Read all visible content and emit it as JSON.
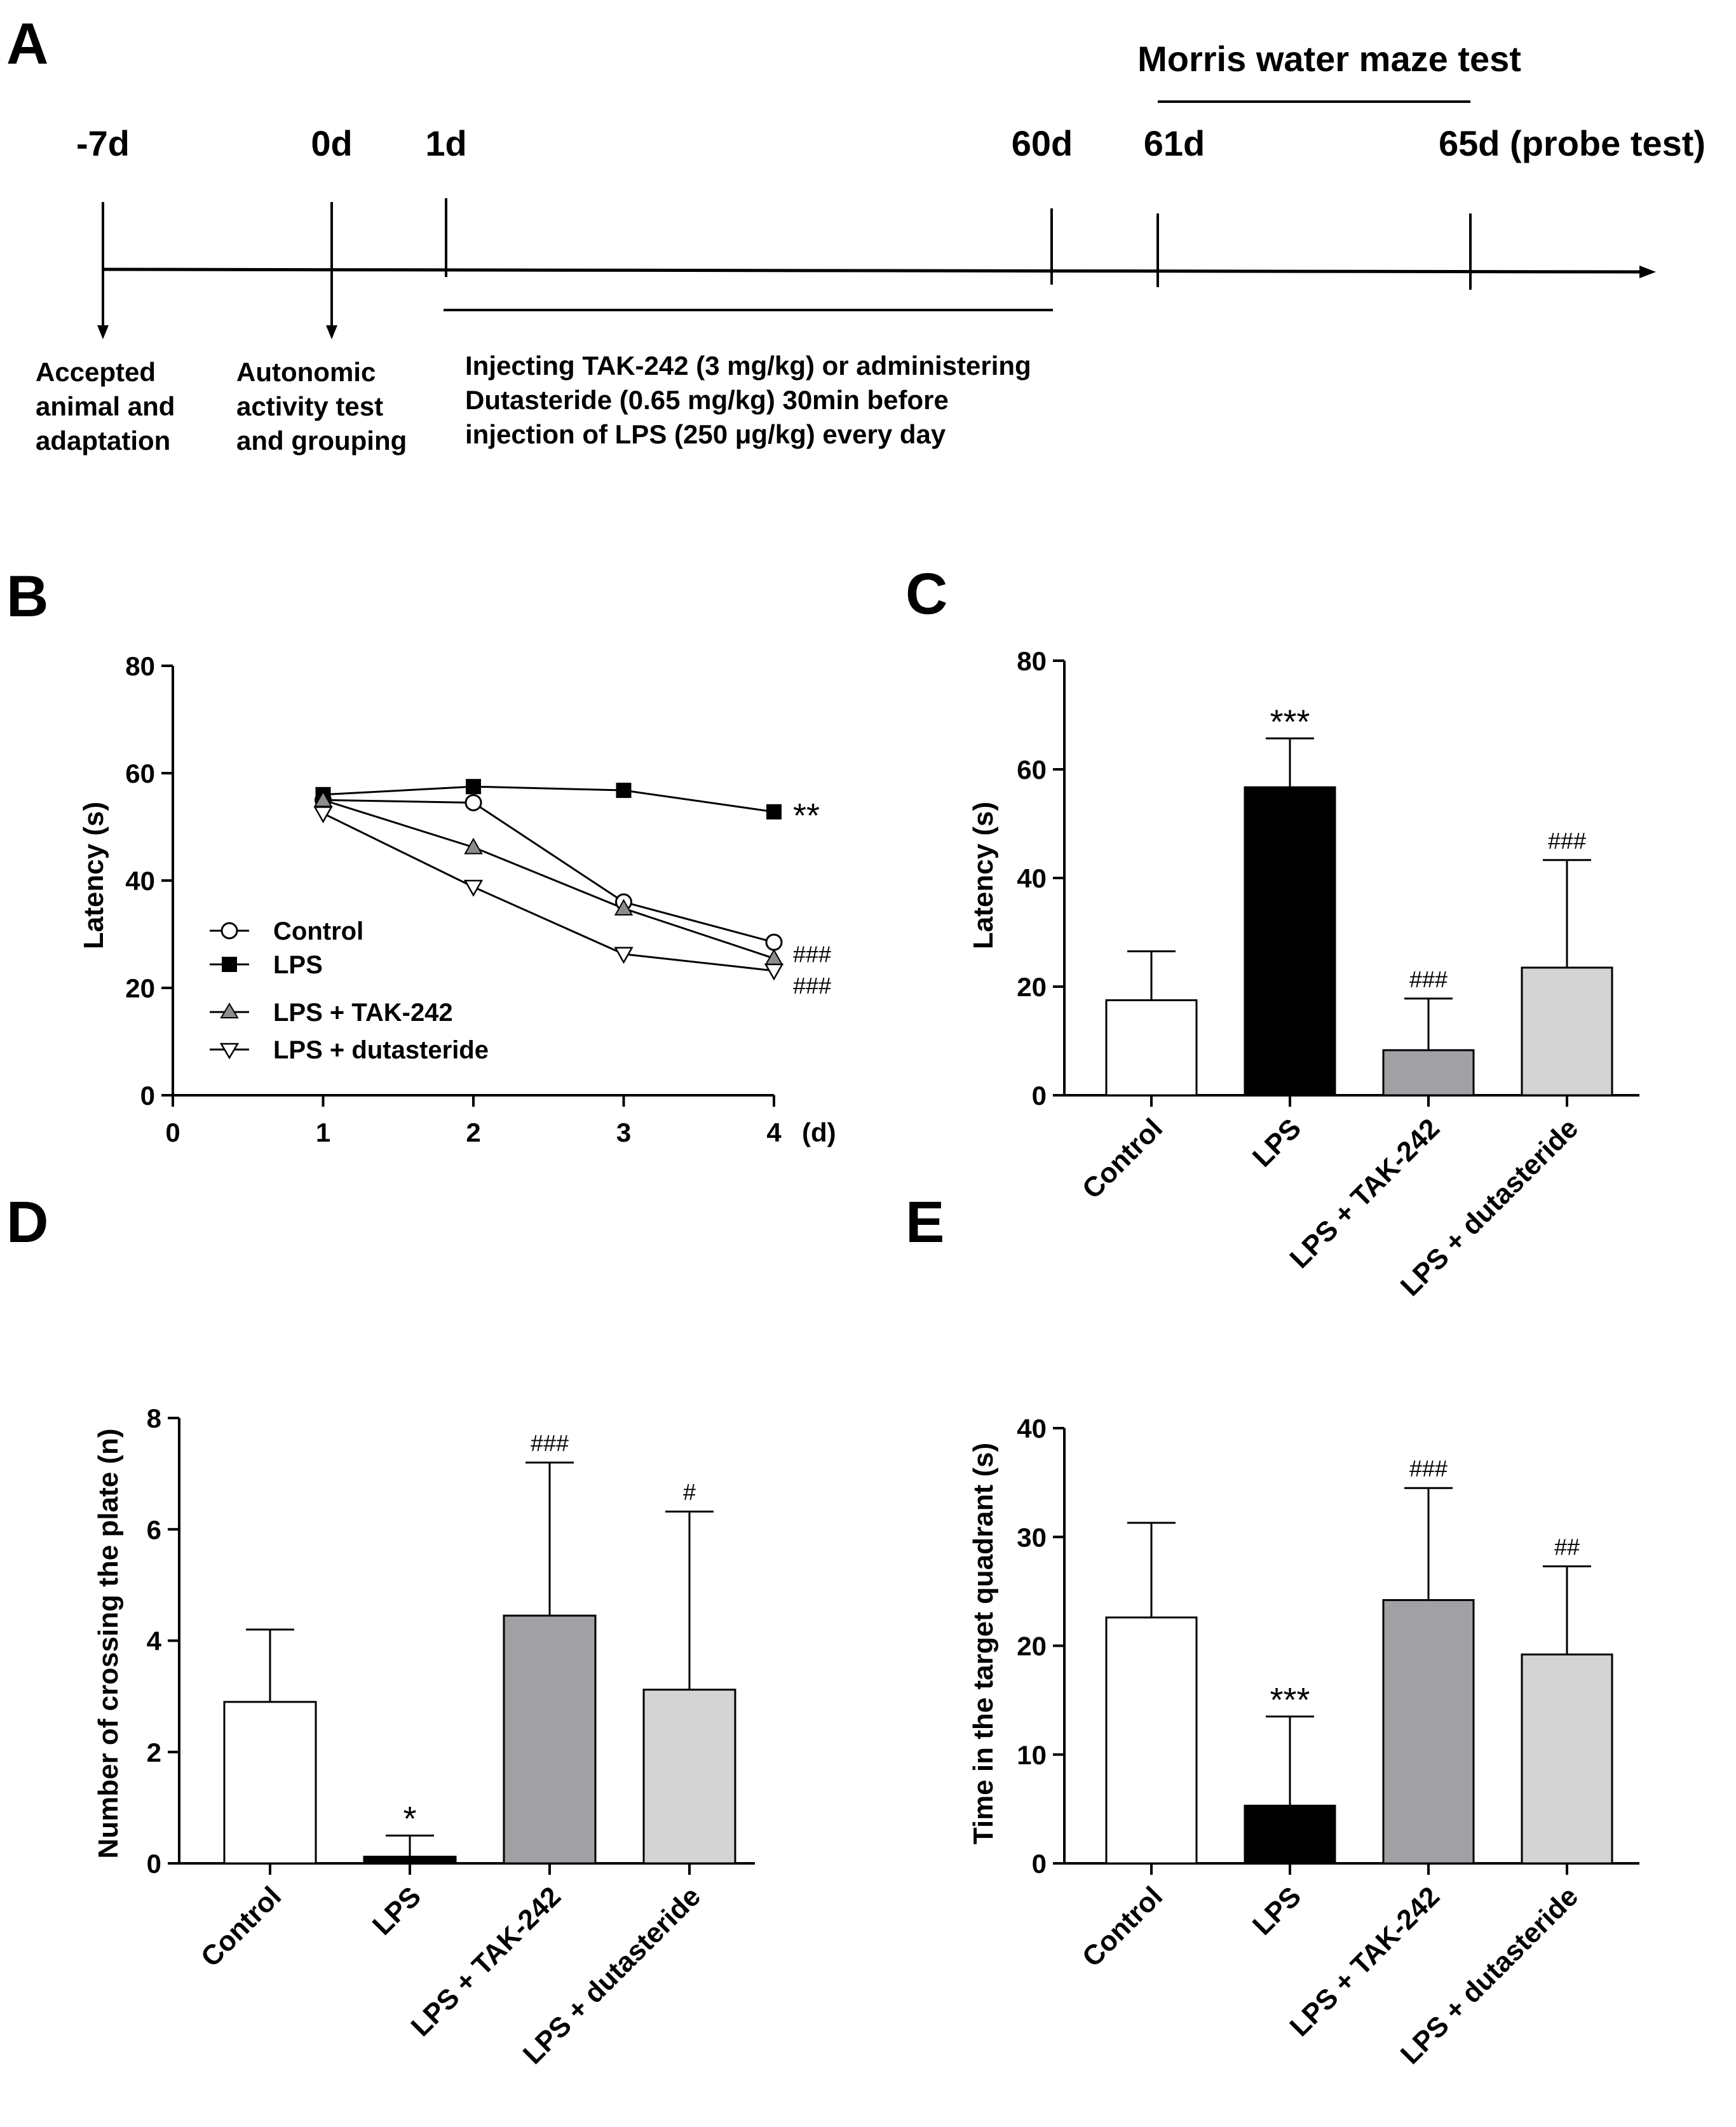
{
  "panel_labels": [
    "A",
    "B",
    "C",
    "D",
    "E"
  ],
  "timeline": {
    "days": [
      "-7d",
      "0d",
      "1d",
      "60d",
      "61d",
      "65d (probe test)"
    ],
    "maze_title": "Morris water maze test",
    "notes": {
      "adaptation": [
        "Accepted",
        "animal and",
        "adaptation"
      ],
      "grouping": [
        "Autonomic",
        "activity test",
        "and grouping"
      ],
      "injection": [
        "Injecting TAK-242 (3 mg/kg) or administering",
        "Dutasteride (0.65 mg/kg) 30min before",
        "injection of  LPS (250 μg/kg) every day"
      ]
    }
  },
  "colors": {
    "control": "#ffffff",
    "lps": "#000000",
    "tak242": "#a0a0a5",
    "dutasteride": "#d4d4d4",
    "line": "#000000"
  },
  "chart_data": [
    {
      "id": "B",
      "type": "line",
      "ylabel": "Latency (s)",
      "xunit": "(d)",
      "x": [
        1,
        2,
        3,
        4
      ],
      "xlim": [
        0,
        4
      ],
      "ylim": [
        0,
        80
      ],
      "xticks": [
        0,
        1,
        2,
        3,
        4
      ],
      "yticks": [
        0,
        20,
        40,
        60,
        80
      ],
      "series": [
        {
          "name": "Control",
          "marker": "circle-open",
          "values": [
            55,
            54.5,
            36,
            28.5
          ],
          "annotation": ""
        },
        {
          "name": "LPS",
          "marker": "square-filled",
          "values": [
            56,
            57.5,
            56.8,
            52.8
          ],
          "annotation": "**"
        },
        {
          "name": "LPS + TAK-242",
          "marker": "triangle-up-gray",
          "values": [
            55,
            46.2,
            34.8,
            25.5
          ],
          "annotation": "###"
        },
        {
          "name": "LPS + dutasteride",
          "marker": "triangle-down-open",
          "values": [
            52.5,
            38.8,
            26.3,
            23.2
          ],
          "annotation": "###"
        }
      ]
    },
    {
      "id": "C",
      "type": "bar",
      "ylabel": "Latency (s)",
      "ylim": [
        0,
        80
      ],
      "yticks": [
        0,
        20,
        40,
        60,
        80
      ],
      "categories": [
        "Control",
        "LPS",
        "LPS + TAK-242",
        "LPS + dutasteride"
      ],
      "values": [
        17.5,
        56.7,
        8.3,
        23.5
      ],
      "errors": [
        9,
        9,
        9.5,
        19.8
      ],
      "annotations": [
        "",
        "***",
        "###",
        "###"
      ]
    },
    {
      "id": "D",
      "type": "bar",
      "ylabel": "Number of crossing the plate (n)",
      "ylim": [
        0,
        8
      ],
      "yticks": [
        0,
        2,
        4,
        6,
        8
      ],
      "categories": [
        "Control",
        "LPS",
        "LPS + TAK-242",
        "LPS + dutasteride"
      ],
      "values": [
        2.9,
        0.12,
        4.45,
        3.12
      ],
      "errors": [
        1.3,
        0.38,
        2.75,
        3.2
      ],
      "annotations": [
        "",
        "*",
        "###",
        "#"
      ]
    },
    {
      "id": "E",
      "type": "bar",
      "ylabel": "Time in the target quadrant (s)",
      "ylim": [
        0,
        40
      ],
      "yticks": [
        0,
        10,
        20,
        30,
        40
      ],
      "categories": [
        "Control",
        "LPS",
        "LPS + TAK-242",
        "LPS + dutasteride"
      ],
      "values": [
        22.6,
        5.3,
        24.2,
        19.2
      ],
      "errors": [
        8.7,
        8.2,
        10.3,
        8.1
      ],
      "annotations": [
        "",
        "***",
        "###",
        "##"
      ]
    }
  ]
}
